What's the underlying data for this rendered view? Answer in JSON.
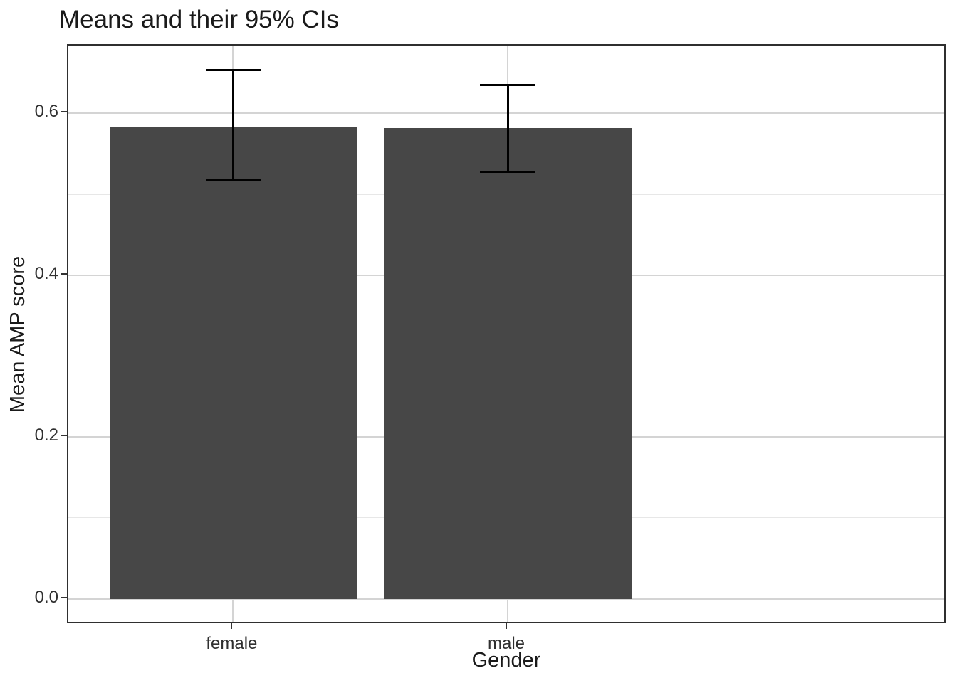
{
  "chart_data": {
    "type": "bar",
    "title": "Means and their 95% CIs",
    "xlabel": "Gender",
    "ylabel": "Mean AMP score",
    "categories": [
      "female",
      "male"
    ],
    "series": [
      {
        "name": "Mean AMP score",
        "values": [
          0.584,
          0.582
        ],
        "ci_lower": [
          0.517,
          0.528
        ],
        "ci_upper": [
          0.654,
          0.635
        ]
      }
    ],
    "error_bars": "95% confidence intervals",
    "y_ticks": [
      0.0,
      0.2,
      0.4,
      0.6
    ],
    "y_tick_labels": [
      "0.0",
      "0.2",
      "0.4",
      "0.6"
    ],
    "y_minor_ticks": [
      0.1,
      0.3,
      0.5
    ],
    "ylim": [
      -0.032,
      0.684
    ],
    "grid": "horizontal major+minor, vertical major at categories",
    "legend": "none",
    "colors": {
      "bar_fill": "#474747",
      "error_bar": "#000000",
      "grid_major": "#d4d4d4",
      "grid_minor": "#e7e7e7",
      "panel_border": "#2f2f2f",
      "text": "#1a1a1a",
      "background": "#ffffff"
    }
  }
}
